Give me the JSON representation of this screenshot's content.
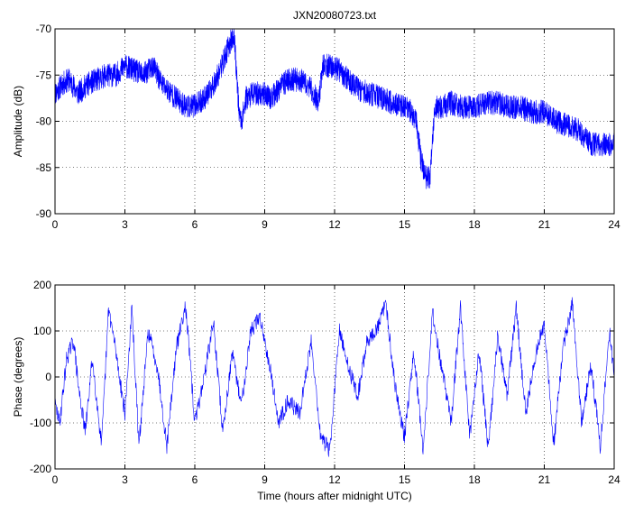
{
  "title": "JXN20080723.txt",
  "colors": {
    "trace": "#0000ff",
    "axes": "#000000",
    "background": "#ffffff"
  },
  "chart_data": [
    {
      "type": "line",
      "title": "JXN20080723.txt",
      "xlabel": "",
      "ylabel": "Amplitude (dB)",
      "xlim": [
        0,
        24
      ],
      "ylim": [
        -90,
        -70
      ],
      "xticks": [
        0,
        3,
        6,
        9,
        12,
        15,
        18,
        21,
        24
      ],
      "yticks": [
        -90,
        -85,
        -80,
        -75,
        -70
      ],
      "xticklabels": [
        "0",
        "3",
        "6",
        "9",
        "12",
        "15",
        "18",
        "21",
        "24"
      ],
      "yticklabels": [
        "-90",
        "-85",
        "-80",
        "-75",
        "-70"
      ],
      "grid": true,
      "noise_amplitude": 1.3,
      "series": [
        {
          "x": [
            0,
            0.3,
            0.6,
            1.0,
            1.4,
            1.8,
            2.2,
            2.6,
            3.0,
            3.4,
            3.8,
            4.2,
            4.6,
            5.0,
            5.4,
            5.8,
            6.2,
            6.6,
            7.0,
            7.3,
            7.5,
            7.7,
            7.8,
            7.9,
            8.0,
            8.2,
            8.5,
            9.0,
            9.3,
            9.6,
            10.0,
            10.5,
            11.0,
            11.3,
            11.5,
            11.8,
            12.2,
            12.6,
            13.0,
            13.5,
            14.0,
            14.5,
            15.0,
            15.3,
            15.5,
            15.7,
            15.9,
            16.1,
            16.3,
            16.6,
            17.0,
            17.5,
            18.0,
            18.5,
            19.0,
            19.5,
            20.0,
            20.5,
            21.0,
            21.5,
            22.0,
            22.5,
            23.0,
            23.5,
            24.0
          ],
          "values": [
            -77,
            -76,
            -75.5,
            -77,
            -76,
            -75.5,
            -75,
            -75,
            -74,
            -74.5,
            -75,
            -74,
            -76,
            -77,
            -78,
            -78.5,
            -78,
            -77,
            -75,
            -73,
            -71.5,
            -71,
            -75,
            -79,
            -80,
            -77.5,
            -77,
            -77,
            -77.5,
            -76.5,
            -75.5,
            -75.5,
            -76.5,
            -78,
            -74,
            -74,
            -74.5,
            -75.5,
            -76.5,
            -77,
            -77.5,
            -78,
            -78.5,
            -79,
            -80,
            -84,
            -86,
            -86,
            -78.5,
            -78.5,
            -78,
            -78.5,
            -78.5,
            -78,
            -78,
            -78.5,
            -78.5,
            -79,
            -79,
            -80,
            -80.5,
            -81,
            -82.5,
            -82.5,
            -82.5
          ]
        }
      ]
    },
    {
      "type": "line",
      "title": "",
      "xlabel": "Time (hours after midnight UTC)",
      "ylabel": "Phase (degrees)",
      "xlim": [
        0,
        24
      ],
      "ylim": [
        -200,
        200
      ],
      "xticks": [
        0,
        3,
        6,
        9,
        12,
        15,
        18,
        21,
        24
      ],
      "yticks": [
        -200,
        -100,
        0,
        100,
        200
      ],
      "xticklabels": [
        "0",
        "3",
        "6",
        "9",
        "12",
        "15",
        "18",
        "21",
        "24"
      ],
      "yticklabels": [
        "-200",
        "-100",
        "0",
        "100",
        "200"
      ],
      "grid": true,
      "noise_amplitude": 18,
      "series": [
        {
          "x": [
            0,
            0.2,
            0.5,
            0.8,
            1.0,
            1.3,
            1.6,
            2.0,
            2.3,
            2.6,
            3.0,
            3.3,
            3.6,
            4.0,
            4.4,
            4.8,
            5.2,
            5.6,
            6.0,
            6.4,
            6.8,
            7.2,
            7.6,
            8.0,
            8.4,
            8.8,
            9.2,
            9.6,
            10.0,
            10.5,
            11.0,
            11.4,
            11.8,
            12.2,
            12.6,
            13.0,
            13.4,
            13.8,
            14.2,
            14.6,
            15.0,
            15.4,
            15.8,
            16.2,
            16.6,
            17.0,
            17.4,
            17.8,
            18.2,
            18.6,
            19.0,
            19.4,
            19.8,
            20.2,
            20.6,
            21.0,
            21.4,
            21.8,
            22.2,
            22.6,
            23.0,
            23.4,
            23.8,
            24.0
          ],
          "values": [
            -60,
            -100,
            40,
            80,
            -20,
            -120,
            40,
            -150,
            150,
            60,
            -80,
            150,
            -150,
            100,
            20,
            -150,
            60,
            160,
            -100,
            0,
            120,
            -120,
            50,
            -60,
            100,
            130,
            30,
            -100,
            -50,
            -80,
            80,
            -130,
            -160,
            100,
            20,
            -40,
            80,
            100,
            160,
            -20,
            -130,
            60,
            -160,
            140,
            20,
            -100,
            150,
            -130,
            60,
            -160,
            90,
            -40,
            150,
            -80,
            40,
            120,
            -150,
            60,
            160,
            -100,
            30,
            -150,
            100,
            0
          ]
        }
      ]
    }
  ]
}
